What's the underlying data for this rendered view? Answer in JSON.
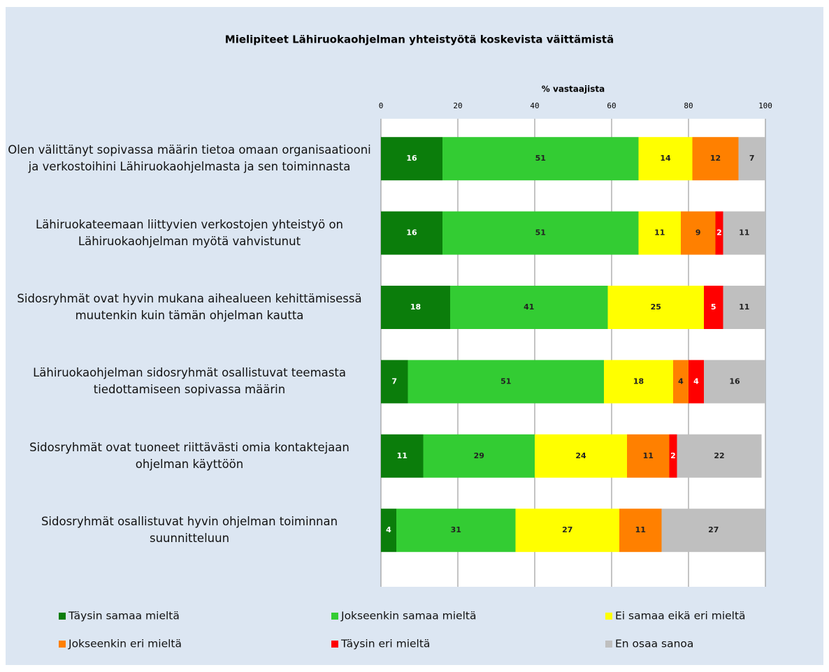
{
  "chart_data": {
    "type": "stacked-bar-horizontal",
    "title": "Mielipiteet Lähiruokaohjelman yhteistyötä koskevista väittämistä",
    "x_axis_label": "% vastaajista",
    "categories": [
      "Olen välittänyt sopivassa määrin tietoa omaan organisaatiooni ja verkostoihini Lähiruokaohjelmasta ja sen toiminnasta",
      "Lähiruokateemaan liittyvien verkostojen yhteistyö on Lähiruokaohjelman myötä vahvistunut",
      "Sidosryhmät ovat hyvin mukana aihealueen kehittämisessä muutenkin kuin tämän ohjelman kautta",
      "Lähiruokaohjelman sidosryhmät osallistuvat teemasta tiedottamiseen sopivassa määrin",
      "Sidosryhmät ovat tuoneet riittävästi omia kontaktejaan ohjelman käyttöön",
      "Sidosryhmät osallistuvat hyvin ohjelman toiminnan suunnitteluun"
    ],
    "series": [
      {
        "name": "Täysin samaa mieltä",
        "color": "#0b7d0b",
        "values": [
          16,
          16,
          18,
          7,
          11,
          4
        ]
      },
      {
        "name": "Jokseenkin samaa mieltä",
        "color": "#33cc33",
        "values": [
          51,
          51,
          41,
          51,
          29,
          31
        ]
      },
      {
        "name": "Ei samaa eikä eri mieltä",
        "color": "#ffff00",
        "values": [
          14,
          11,
          25,
          18,
          24,
          27
        ]
      },
      {
        "name": "Jokseenkin eri mieltä",
        "color": "#ff8000",
        "values": [
          12,
          9,
          null,
          4,
          11,
          11
        ]
      },
      {
        "name": "Täysin eri mieltä",
        "color": "#ff0000",
        "values": [
          null,
          2,
          5,
          4,
          2,
          null
        ]
      },
      {
        "name": "En osaa sanoa",
        "color": "#bfbfbf",
        "values": [
          7,
          11,
          11,
          16,
          22,
          27
        ]
      }
    ],
    "xlim": [
      0,
      100
    ],
    "xticks": [
      0,
      20,
      40,
      60,
      80,
      100
    ],
    "grid": true
  }
}
